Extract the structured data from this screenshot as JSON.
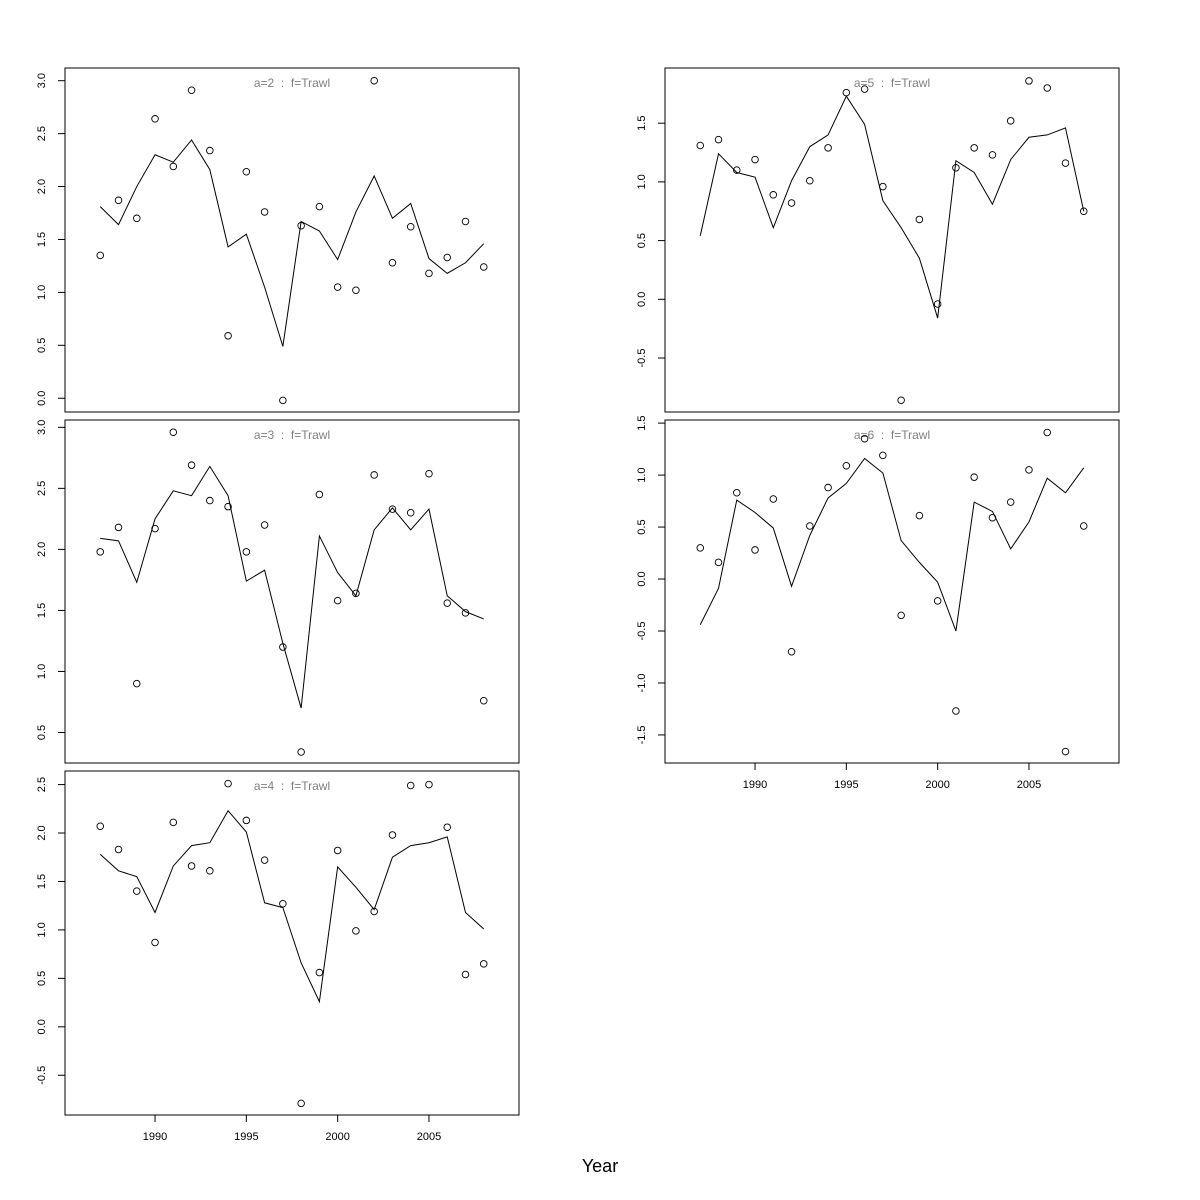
{
  "xlabel": "Year",
  "chart_data": [
    {
      "type": "line",
      "title": "a=2  :  f=Trawl",
      "x": [
        1987,
        1988,
        1989,
        1990,
        1991,
        1992,
        1993,
        1994,
        1995,
        1996,
        1997,
        1998,
        1999,
        2000,
        2001,
        2002,
        2003,
        2004,
        2005,
        2006,
        2007,
        2008
      ],
      "series": [
        {
          "marker": "circle",
          "color": "#000000",
          "values": [
            1.35,
            1.87,
            1.7,
            2.64,
            2.19,
            2.91,
            2.34,
            0.59,
            2.14,
            1.76,
            -0.02,
            1.63,
            1.81,
            1.05,
            1.02,
            3.0,
            1.28,
            1.62,
            1.18,
            1.33,
            1.67,
            1.24
          ]
        },
        {
          "marker": "line",
          "color": "#000000",
          "values": [
            1.81,
            1.64,
            2.0,
            2.3,
            2.23,
            2.44,
            2.16,
            1.43,
            1.55,
            1.05,
            0.49,
            1.67,
            1.58,
            1.31,
            1.76,
            2.1,
            1.7,
            1.84,
            1.32,
            1.18,
            1.28,
            1.46
          ]
        }
      ],
      "xlim": [
        1985.07,
        2009.93
      ],
      "ylim": [
        -0.13,
        3.12
      ],
      "yticks": [
        {
          "value": 0,
          "label": "0.0"
        },
        0.5,
        {
          "value": 1,
          "label": "1.0"
        },
        1.5,
        {
          "value": 2,
          "label": "2.0"
        },
        2.5,
        {
          "value": 3,
          "label": "3.0"
        }
      ]
    },
    {
      "type": "line",
      "title": "a=3  :  f=Trawl",
      "x": [
        1987,
        1988,
        1989,
        1990,
        1991,
        1992,
        1993,
        1994,
        1995,
        1996,
        1997,
        1998,
        1999,
        2000,
        2001,
        2002,
        2003,
        2004,
        2005,
        2006,
        2007,
        2008
      ],
      "series": [
        {
          "marker": "circle",
          "color": "#000000",
          "values": [
            1.98,
            2.18,
            0.9,
            2.17,
            2.96,
            2.69,
            2.4,
            2.35,
            1.98,
            2.2,
            1.2,
            0.34,
            2.45,
            1.58,
            1.64,
            2.61,
            2.33,
            2.3,
            2.62,
            1.56,
            1.48,
            0.76
          ]
        },
        {
          "marker": "line",
          "color": "#000000",
          "values": [
            2.09,
            2.07,
            1.73,
            2.25,
            2.48,
            2.44,
            2.68,
            2.44,
            1.74,
            1.83,
            1.23,
            0.7,
            2.11,
            1.81,
            1.62,
            2.16,
            2.34,
            2.16,
            2.33,
            1.62,
            1.49,
            1.43
          ]
        }
      ],
      "xlim": [
        1985.07,
        2009.93
      ],
      "ylim": [
        0.25,
        3.06
      ],
      "yticks": [
        0.5,
        {
          "value": 1,
          "label": "1.0"
        },
        1.5,
        {
          "value": 2,
          "label": "2.0"
        },
        2.5,
        {
          "value": 3,
          "label": "3.0"
        }
      ]
    },
    {
      "type": "line",
      "title": "a=4  :  f=Trawl",
      "x": [
        1987,
        1988,
        1989,
        1990,
        1991,
        1992,
        1993,
        1994,
        1995,
        1996,
        1997,
        1998,
        1999,
        2000,
        2001,
        2002,
        2003,
        2004,
        2005,
        2006,
        2007,
        2008
      ],
      "series": [
        {
          "marker": "circle",
          "color": "#000000",
          "values": [
            2.07,
            1.83,
            1.4,
            0.87,
            2.11,
            1.66,
            1.61,
            2.51,
            2.13,
            1.72,
            1.27,
            -0.79,
            0.56,
            1.82,
            0.99,
            1.19,
            1.98,
            2.49,
            2.5,
            2.06,
            0.54,
            0.65
          ]
        },
        {
          "marker": "line",
          "color": "#000000",
          "values": [
            1.78,
            1.61,
            1.55,
            1.18,
            1.66,
            1.87,
            1.9,
            2.23,
            2.01,
            1.28,
            1.23,
            0.66,
            0.26,
            1.65,
            1.44,
            1.21,
            1.75,
            1.87,
            1.9,
            1.96,
            1.18,
            1.01
          ]
        }
      ],
      "xlim": [
        1985.07,
        2009.93
      ],
      "ylim": [
        -0.91,
        2.64
      ],
      "yticks": [
        -0.5,
        {
          "value": 0,
          "label": "0.0"
        },
        0.5,
        {
          "value": 1,
          "label": "1.0"
        },
        1.5,
        {
          "value": 2,
          "label": "2.0"
        },
        2.5
      ],
      "xticks": [
        1990,
        1995,
        2000,
        2005
      ]
    },
    {
      "type": "line",
      "title": "a=5  :  f=Trawl",
      "x": [
        1987,
        1988,
        1989,
        1990,
        1991,
        1992,
        1993,
        1994,
        1995,
        1996,
        1997,
        1998,
        1999,
        2000,
        2001,
        2002,
        2003,
        2004,
        2005,
        2006,
        2007,
        2008
      ],
      "series": [
        {
          "marker": "circle",
          "color": "#000000",
          "values": [
            1.31,
            1.36,
            1.1,
            1.19,
            0.89,
            0.82,
            1.01,
            1.29,
            1.76,
            1.79,
            0.96,
            -0.86,
            0.68,
            -0.04,
            1.12,
            1.29,
            1.23,
            1.52,
            1.86,
            1.8,
            1.16,
            0.75
          ]
        },
        {
          "marker": "line",
          "color": "#000000",
          "values": [
            0.54,
            1.24,
            1.08,
            1.04,
            0.61,
            1.01,
            1.3,
            1.4,
            1.73,
            1.49,
            0.84,
            0.61,
            0.35,
            -0.16,
            1.18,
            1.08,
            0.81,
            1.19,
            1.38,
            1.4,
            1.46,
            0.75
          ]
        }
      ],
      "xlim": [
        1985.07,
        2009.93
      ],
      "ylim": [
        -0.96,
        1.97
      ],
      "yticks": [
        -0.5,
        {
          "value": 0,
          "label": "0.0"
        },
        0.5,
        {
          "value": 1,
          "label": "1.0"
        },
        1.5
      ]
    },
    {
      "type": "line",
      "title": "a=6  :  f=Trawl",
      "x": [
        1987,
        1988,
        1989,
        1990,
        1991,
        1992,
        1993,
        1994,
        1995,
        1996,
        1997,
        1998,
        1999,
        2000,
        2001,
        2002,
        2003,
        2004,
        2005,
        2006,
        2007,
        2008
      ],
      "series": [
        {
          "marker": "circle",
          "color": "#000000",
          "values": [
            0.3,
            0.16,
            0.83,
            0.28,
            0.77,
            -0.7,
            0.51,
            0.88,
            1.09,
            1.35,
            1.19,
            -0.35,
            0.61,
            -0.21,
            -1.27,
            0.98,
            0.59,
            0.74,
            1.05,
            1.41,
            -1.66,
            0.51
          ]
        },
        {
          "marker": "line",
          "color": "#000000",
          "values": [
            -0.44,
            -0.09,
            0.76,
            0.64,
            0.49,
            -0.07,
            0.42,
            0.78,
            0.92,
            1.16,
            1.02,
            0.37,
            0.16,
            -0.03,
            -0.5,
            0.74,
            0.65,
            0.29,
            0.55,
            0.97,
            0.83,
            1.07
          ]
        }
      ],
      "xlim": [
        1985.07,
        2009.93
      ],
      "ylim": [
        -1.77,
        1.53
      ],
      "yticks": [
        -1.5,
        {
          "value": -1,
          "label": "-1.0"
        },
        -0.5,
        {
          "value": 0,
          "label": "0.0"
        },
        0.5,
        {
          "value": 1,
          "label": "1.0"
        },
        1.5
      ],
      "xticks": [
        1990,
        1995,
        2000,
        2005
      ]
    }
  ]
}
